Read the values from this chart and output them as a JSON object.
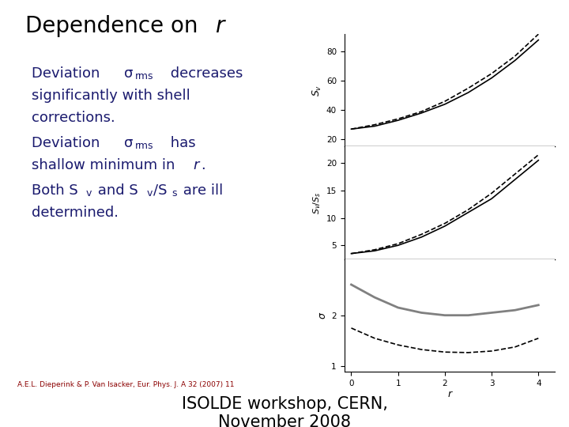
{
  "bg_color": "#ffffff",
  "navy": "#1a1a6e",
  "title_normal": "Dependence on ",
  "title_italic": "r",
  "citation": "A.E.L. Dieperink & P. Van Isacker, Eur. Phys. J. A 32 (2007) 11",
  "footer": "ISOLDE workshop, CERN,",
  "footer2": "November 2008",
  "r_values": [
    0.0,
    0.5,
    1.0,
    1.5,
    2.0,
    2.5,
    3.0,
    3.5,
    4.0
  ],
  "sv_solid": [
    27,
    29,
    33,
    38,
    44,
    52,
    62,
    74,
    88
  ],
  "sv_dashed": [
    27,
    30,
    34,
    39,
    46,
    55,
    65,
    77,
    92
  ],
  "ratio_solid": [
    3.5,
    4.0,
    5.0,
    6.5,
    8.5,
    11.0,
    13.5,
    17.0,
    20.5
  ],
  "ratio_dashed": [
    3.5,
    4.2,
    5.3,
    7.0,
    9.0,
    11.5,
    14.5,
    18.0,
    21.5
  ],
  "sigma_solid": [
    2.6,
    2.35,
    2.15,
    2.05,
    2.0,
    2.0,
    2.05,
    2.1,
    2.2
  ],
  "sigma_dashed": [
    1.75,
    1.55,
    1.42,
    1.33,
    1.28,
    1.27,
    1.3,
    1.38,
    1.55
  ],
  "sv_ylim": [
    15,
    92
  ],
  "sv_yticks": [
    20,
    40,
    60,
    80
  ],
  "ratio_ylim": [
    2.5,
    23
  ],
  "ratio_yticks": [
    5,
    10,
    15,
    20
  ],
  "sigma_ylim": [
    0.9,
    3.1
  ],
  "sigma_yticks": [
    1,
    2
  ],
  "xlim": [
    -0.15,
    4.35
  ],
  "xticks": [
    0,
    1,
    2,
    3,
    4
  ]
}
